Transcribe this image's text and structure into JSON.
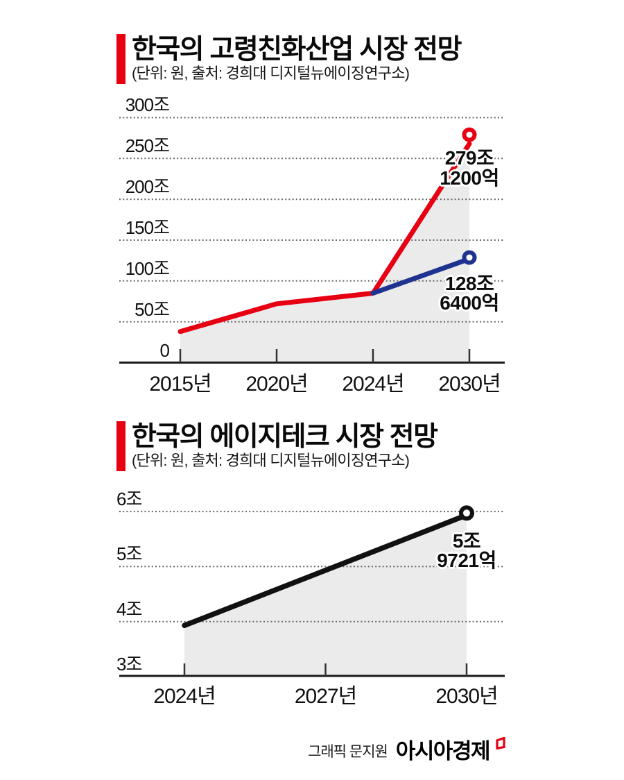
{
  "page": {
    "background": "#ffffff"
  },
  "colors": {
    "accent_red": "#e60012",
    "line_red": "#e60012",
    "line_blue": "#1e3390",
    "line_black": "#111111",
    "area_gray": "#ebebeb",
    "grid_gray": "#666666",
    "axis_black": "#1a1a1a",
    "text_black": "#111111"
  },
  "footer": {
    "credit": "그래픽 문지원",
    "brand": "아시아경제"
  },
  "chart_data": [
    {
      "type": "line",
      "title": "한국의 고령친화산업 시장 전망",
      "unit_note": "(단위: 원, 출처: 경희대 디지털뉴에이징연구소)",
      "unit": "조 원",
      "categories": [
        "2015년",
        "2020년",
        "2024년",
        "2030년"
      ],
      "ylim": [
        0,
        300
      ],
      "yticks": [
        "300조",
        "250조",
        "200조",
        "150조",
        "100조",
        "50조",
        "0"
      ],
      "grid": "dotted-horizontal",
      "legend": "none",
      "series": [
        {
          "name": "red-forecast-line",
          "color": "#e60012",
          "values": [
            38,
            72,
            85,
            279.12
          ],
          "end_label_lines": [
            "279조",
            "1200억"
          ],
          "marker": "open-circle",
          "area_fill": "#ebebeb"
        },
        {
          "name": "blue-forecast-line",
          "color": "#1e3390",
          "values": [
            null,
            null,
            85,
            128.64
          ],
          "end_label_lines": [
            "128조",
            "6400억"
          ],
          "marker": "open-circle",
          "area_fill": null
        }
      ]
    },
    {
      "type": "line",
      "title": "한국의 에이지테크 시장 전망",
      "unit_note": "(단위: 원, 출처: 경희대 디지털뉴에이징연구소)",
      "unit": "조 원",
      "categories": [
        "2024년",
        "2027년",
        "2030년"
      ],
      "ylim": [
        3,
        6
      ],
      "yticks": [
        "6조",
        "5조",
        "4조",
        "3조"
      ],
      "grid": "dotted-horizontal",
      "legend": "none",
      "series": [
        {
          "name": "black-forecast-line",
          "color": "#111111",
          "values": [
            3.93,
            null,
            5.9721
          ],
          "end_label_lines": [
            "5조",
            "9721억"
          ],
          "marker": "open-circle",
          "area_fill": "#ebebeb"
        }
      ]
    }
  ]
}
